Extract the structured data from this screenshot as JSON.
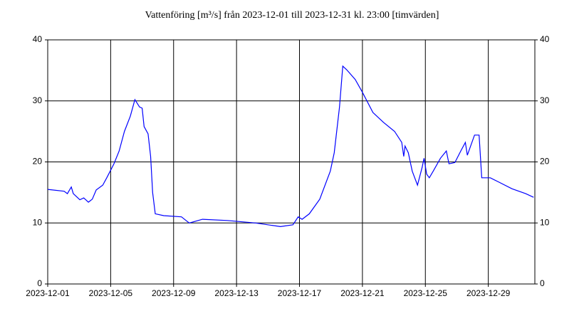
{
  "chart_data": {
    "type": "line",
    "title": "Vattenföring [m³/s] från 2023-12-01 till 2023-12-31 kl. 23:00 [timvärden]",
    "x": [
      "2023-12-01T00:00",
      "2023-12-02T01:00",
      "2023-12-02T06:00",
      "2023-12-02T12:00",
      "2023-12-02T15:00",
      "2023-12-03T01:00",
      "2023-12-03T07:00",
      "2023-12-03T14:00",
      "2023-12-03T20:00",
      "2023-12-04T02:00",
      "2023-12-04T12:00",
      "2023-12-04T18:00",
      "2023-12-05T05:00",
      "2023-12-05T13:00",
      "2023-12-05T21:00",
      "2023-12-06T06:00",
      "2023-12-06T13:00",
      "2023-12-06T20:00",
      "2023-12-07T00:00",
      "2023-12-07T03:00",
      "2023-12-07T09:00",
      "2023-12-07T13:00",
      "2023-12-07T16:00",
      "2023-12-07T20:00",
      "2023-12-08T09:00",
      "2023-12-09T12:00",
      "2023-12-09T19:00",
      "2023-12-10T00:00",
      "2023-12-10T20:00",
      "2023-12-12T10:00",
      "2023-12-14T05:00",
      "2023-12-15T19:00",
      "2023-12-16T14:00",
      "2023-12-16T22:00",
      "2023-12-17T04:00",
      "2023-12-17T15:00",
      "2023-12-18T07:00",
      "2023-12-18T23:00",
      "2023-12-19T05:00",
      "2023-12-19T13:00",
      "2023-12-19T18:00",
      "2023-12-20T00:00",
      "2023-12-20T13:00",
      "2023-12-21T00:00",
      "2023-12-21T16:00",
      "2023-12-22T08:00",
      "2023-12-23T01:00",
      "2023-12-23T12:00",
      "2023-12-23T15:00",
      "2023-12-23T17:00",
      "2023-12-23T22:00",
      "2023-12-24T04:00",
      "2023-12-24T12:00",
      "2023-12-24T19:00",
      "2023-12-24T22:00",
      "2023-12-25T02:00",
      "2023-12-25T06:00",
      "2023-12-25T12:00",
      "2023-12-25T23:00",
      "2023-12-26T08:00",
      "2023-12-26T12:00",
      "2023-12-26T21:00",
      "2023-12-27T06:00",
      "2023-12-27T13:00",
      "2023-12-27T16:00",
      "2023-12-28T03:00",
      "2023-12-28T10:00",
      "2023-12-28T14:00",
      "2023-12-29T03:00",
      "2023-12-29T14:00",
      "2023-12-30T12:00",
      "2023-12-31T09:00",
      "2023-12-31T21:00"
    ],
    "series": [
      {
        "color": "#0000ff",
        "values": [
          15.5,
          15.2,
          14.8,
          15.9,
          14.8,
          13.8,
          14.1,
          13.4,
          13.9,
          15.4,
          16.2,
          17.4,
          19.7,
          21.8,
          25.0,
          27.5,
          30.2,
          29.0,
          28.8,
          25.8,
          24.6,
          20.9,
          15.0,
          11.5,
          11.2,
          11.0,
          10.4,
          10.0,
          10.6,
          10.4,
          10.0,
          9.4,
          9.7,
          11.0,
          10.6,
          11.5,
          13.9,
          18.5,
          21.5,
          29.0,
          35.7,
          35.1,
          33.5,
          31.4,
          28.1,
          26.5,
          25.0,
          23.2,
          20.9,
          22.6,
          21.5,
          18.5,
          16.2,
          19.1,
          20.6,
          18.0,
          17.4,
          18.5,
          20.6,
          21.8,
          19.7,
          19.9,
          21.8,
          23.2,
          21.1,
          24.4,
          24.4,
          17.4,
          17.4,
          16.8,
          15.6,
          14.8,
          14.2
        ]
      }
    ],
    "xlim": [
      "2023-12-01T00:00",
      "2023-12-31T23:00"
    ],
    "xticks": [
      "2023-12-01",
      "2023-12-05",
      "2023-12-09",
      "2023-12-13",
      "2023-12-17",
      "2023-12-21",
      "2023-12-25",
      "2023-12-29"
    ],
    "ylim": [
      0,
      40
    ],
    "yticks": [
      0,
      10,
      20,
      30,
      40
    ],
    "y2lim": [
      0,
      40
    ],
    "y2ticks": [
      0,
      10,
      20,
      30,
      40
    ],
    "grid": true
  }
}
